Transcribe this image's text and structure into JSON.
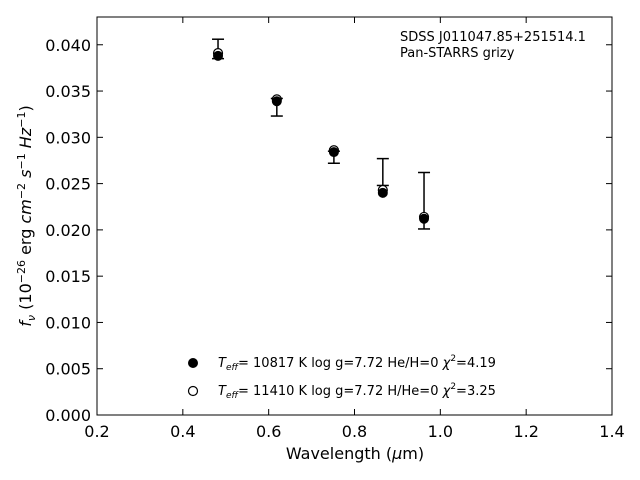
{
  "chart_data": {
    "type": "scatter",
    "annotation_lines": [
      "SDSS J011047.85+251514.1",
      "Pan-STARRS grizy"
    ],
    "xlabel": "Wavelength (μm)",
    "ylabel": "f_ν (10^-26 erg cm^-2 s^-1 Hz^-1)",
    "xlim": [
      0.2,
      1.4
    ],
    "ylim": [
      0.0,
      0.043
    ],
    "xticks": [
      0.2,
      0.4,
      0.6,
      0.8,
      1.0,
      1.2,
      1.4
    ],
    "xtick_labels": [
      "0.2",
      "0.4",
      "0.6",
      "0.8",
      "1.0",
      "1.2",
      "1.4"
    ],
    "yticks": [
      0.0,
      0.005,
      0.01,
      0.015,
      0.02,
      0.025,
      0.03,
      0.035,
      0.04
    ],
    "ytick_labels": [
      "0.000",
      "0.005",
      "0.010",
      "0.015",
      "0.020",
      "0.025",
      "0.030",
      "0.035",
      "0.040"
    ],
    "grid": false,
    "legend_position": "lower-center",
    "observed": {
      "x": [
        0.482,
        0.619,
        0.752,
        0.866,
        0.962
      ],
      "y": [
        0.0389,
        0.0339,
        0.0284,
        0.0248,
        0.0214
      ],
      "yerr_low": [
        0.0385,
        0.0323,
        0.0272,
        0.0248,
        0.0201
      ],
      "yerr_high": [
        0.0406,
        0.0342,
        0.0285,
        0.0277,
        0.0262
      ]
    },
    "series": [
      {
        "name": "He/H=0",
        "legend_parts": {
          "teff": "10817 K",
          "logg": "log g=7.72",
          "comp": "He/H=0",
          "chi2": "=4.19"
        },
        "marker": "filled",
        "x": [
          0.482,
          0.619,
          0.752,
          0.866,
          0.962
        ],
        "y": [
          0.0388,
          0.0339,
          0.0284,
          0.024,
          0.0212
        ]
      },
      {
        "name": "H/He=0",
        "legend_parts": {
          "teff": "11410 K",
          "logg": "log g=7.72",
          "comp": "H/He=0",
          "chi2": "=3.25"
        },
        "marker": "open",
        "x": [
          0.482,
          0.619,
          0.752,
          0.866,
          0.962
        ],
        "y": [
          0.0391,
          0.0341,
          0.0286,
          0.0243,
          0.0214
        ]
      }
    ]
  }
}
